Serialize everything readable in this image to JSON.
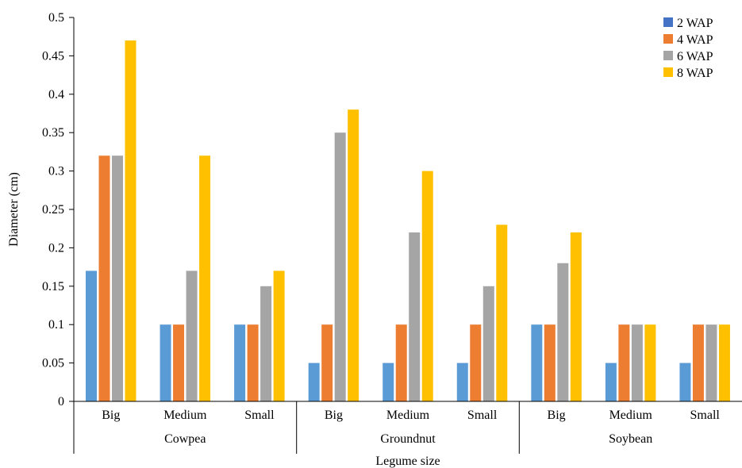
{
  "chart_data": {
    "type": "bar",
    "title": "",
    "xlabel": "Legume size",
    "ylabel": "Diameter (cm)",
    "ylim": [
      0,
      0.5
    ],
    "yticks": [
      0,
      0.05,
      0.1,
      0.15,
      0.2,
      0.25,
      0.3,
      0.35,
      0.4,
      0.45,
      0.5
    ],
    "ytick_labels": [
      "0",
      "0.05",
      "0.1",
      "0.15",
      "0.2",
      "0.25",
      "0.3",
      "0.35",
      "0.4",
      "0.45",
      "0.5"
    ],
    "grid": false,
    "legend_position": "top-right",
    "groups": [
      {
        "name": "Cowpea",
        "categories": [
          "Big",
          "Medium",
          "Small"
        ]
      },
      {
        "name": "Groundnut",
        "categories": [
          "Big",
          "Medium",
          "Small"
        ]
      },
      {
        "name": "Soybean",
        "categories": [
          "Big",
          "Medium",
          "Small"
        ]
      }
    ],
    "series": [
      {
        "name": "2 WAP",
        "color": "#5b9bd5",
        "legend_color": "#4472c4",
        "values": [
          0.17,
          0.1,
          0.1,
          0.05,
          0.05,
          0.05,
          0.1,
          0.05,
          0.05
        ]
      },
      {
        "name": "4 WAP",
        "color": "#ed7d31",
        "legend_color": "#ed7d31",
        "values": [
          0.32,
          0.1,
          0.1,
          0.1,
          0.1,
          0.1,
          0.1,
          0.1,
          0.1
        ]
      },
      {
        "name": "6 WAP",
        "color": "#a5a5a5",
        "legend_color": "#a5a5a5",
        "values": [
          0.32,
          0.17,
          0.15,
          0.35,
          0.22,
          0.15,
          0.18,
          0.1,
          0.1
        ]
      },
      {
        "name": "8 WAP",
        "color": "#ffc000",
        "legend_color": "#ffc000",
        "values": [
          0.47,
          0.32,
          0.17,
          0.38,
          0.3,
          0.23,
          0.22,
          0.1,
          0.1
        ]
      }
    ]
  }
}
